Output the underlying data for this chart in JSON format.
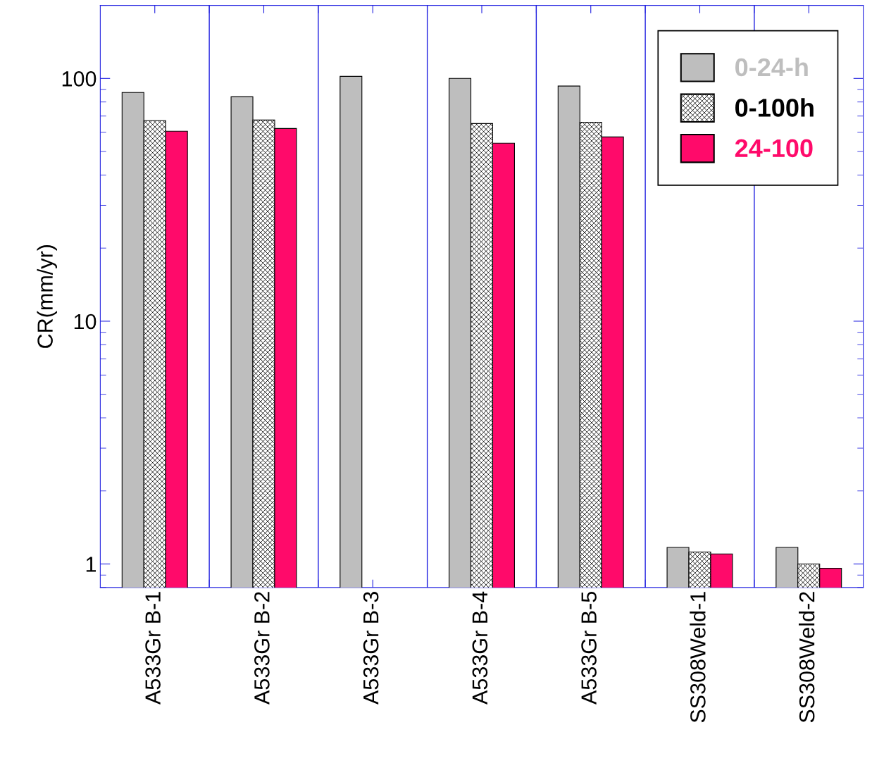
{
  "chart_data": {
    "type": "bar",
    "ylabel": "CR(mm/yr)",
    "log": true,
    "ylim": [
      0.8,
      200
    ],
    "yticks": [
      1,
      10,
      100
    ],
    "grid": "x",
    "legend": "top right",
    "categories": [
      "A533Gr B-1",
      "A533Gr B-2",
      "A533Gr B-3",
      "A533Gr B-4",
      "A533Gr B-5",
      "SS308Weld-1",
      "SS308Weld-2"
    ],
    "series": [
      {
        "name": "0-24-h",
        "color": "#bebebe",
        "values": [
          87.5,
          84,
          102,
          100,
          93,
          1.17,
          1.17
        ]
      },
      {
        "name": "0-100h",
        "color": "#000000",
        "values": [
          67,
          67.4,
          null,
          65.2,
          66,
          1.12,
          1.0
        ]
      },
      {
        "name": "24-100",
        "color": "#ff0a6a",
        "values": [
          60.6,
          62.2,
          null,
          54.1,
          57.4,
          1.1,
          0.96
        ]
      }
    ]
  }
}
